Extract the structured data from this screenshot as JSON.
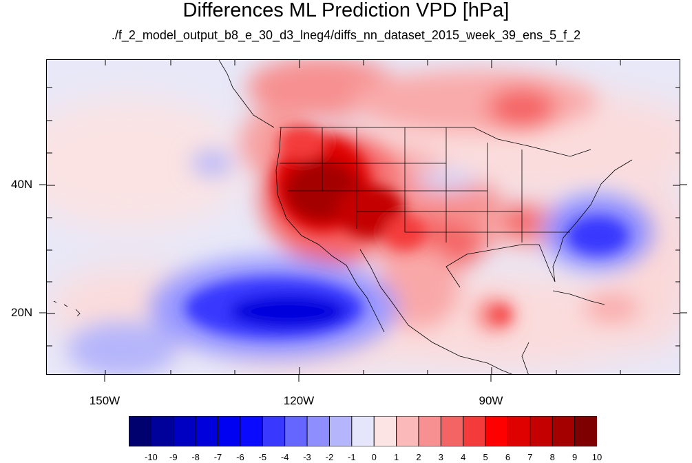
{
  "title": "Differences ML Prediction VPD [hPa]",
  "subtitle": "./f_2_model_output_b8_e_30_d3_lneg4/diffs_nn_dataset_2015_week_39_ens_5_f_2",
  "lat_labels": [
    "40N",
    "20N"
  ],
  "lon_labels": [
    "150W",
    "120W",
    "90W"
  ],
  "colorbar": {
    "labels": [
      "-10",
      "-9",
      "-8",
      "-7",
      "-6",
      "-5",
      "-4",
      "-3",
      "-2",
      "-1",
      "0",
      "1",
      "2",
      "3",
      "4",
      "5",
      "6",
      "7",
      "8",
      "9",
      "10"
    ],
    "colors": [
      "#00006e",
      "#00009a",
      "#0000c2",
      "#0000dd",
      "#0000f2",
      "#0a0aff",
      "#3838ff",
      "#6565ff",
      "#8e8eff",
      "#b5b5fb",
      "#e5e5fb",
      "#fde4e4",
      "#fbb9b9",
      "#f79191",
      "#f56464",
      "#f43a3a",
      "#ff0000",
      "#df0000",
      "#c40000",
      "#a40000",
      "#7f0000"
    ]
  },
  "map_extent": {
    "lon_min": -159.2,
    "lon_max": -61.2,
    "lat_min": 11.0,
    "lat_max": 60.4
  }
}
